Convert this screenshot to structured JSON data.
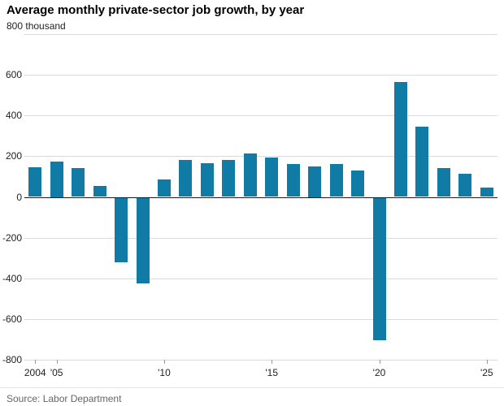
{
  "title": "Average monthly private-sector job growth, by year",
  "source": "Source: Labor Department",
  "accent_color": "#107ba5",
  "chart_data": {
    "type": "bar",
    "title": "Average monthly private-sector job growth, by year",
    "xlabel": "",
    "ylabel": "thousand",
    "y_top_label": "800 thousand",
    "ylim": [
      -800,
      800
    ],
    "y_ticks": [
      800,
      600,
      400,
      200,
      0,
      -200,
      -400,
      -600,
      -800
    ],
    "grid": true,
    "bar_color": "#107ba5",
    "categories": [
      "2004",
      "2005",
      "2006",
      "2007",
      "2008",
      "2009",
      "2010",
      "2011",
      "2012",
      "2013",
      "2014",
      "2015",
      "2016",
      "2017",
      "2018",
      "2019",
      "2020",
      "2021",
      "2022",
      "2023",
      "2024",
      "2025"
    ],
    "values": [
      145,
      175,
      140,
      55,
      -320,
      -425,
      85,
      180,
      165,
      180,
      215,
      195,
      160,
      150,
      160,
      130,
      -705,
      565,
      345,
      140,
      115,
      45
    ],
    "x_ticks": [
      {
        "year": "2004",
        "label": "2004"
      },
      {
        "year": "2005",
        "label": "'05"
      },
      {
        "year": "2010",
        "label": "'10"
      },
      {
        "year": "2015",
        "label": "'15"
      },
      {
        "year": "2020",
        "label": "'20"
      },
      {
        "year": "2025",
        "label": "'25"
      }
    ]
  }
}
